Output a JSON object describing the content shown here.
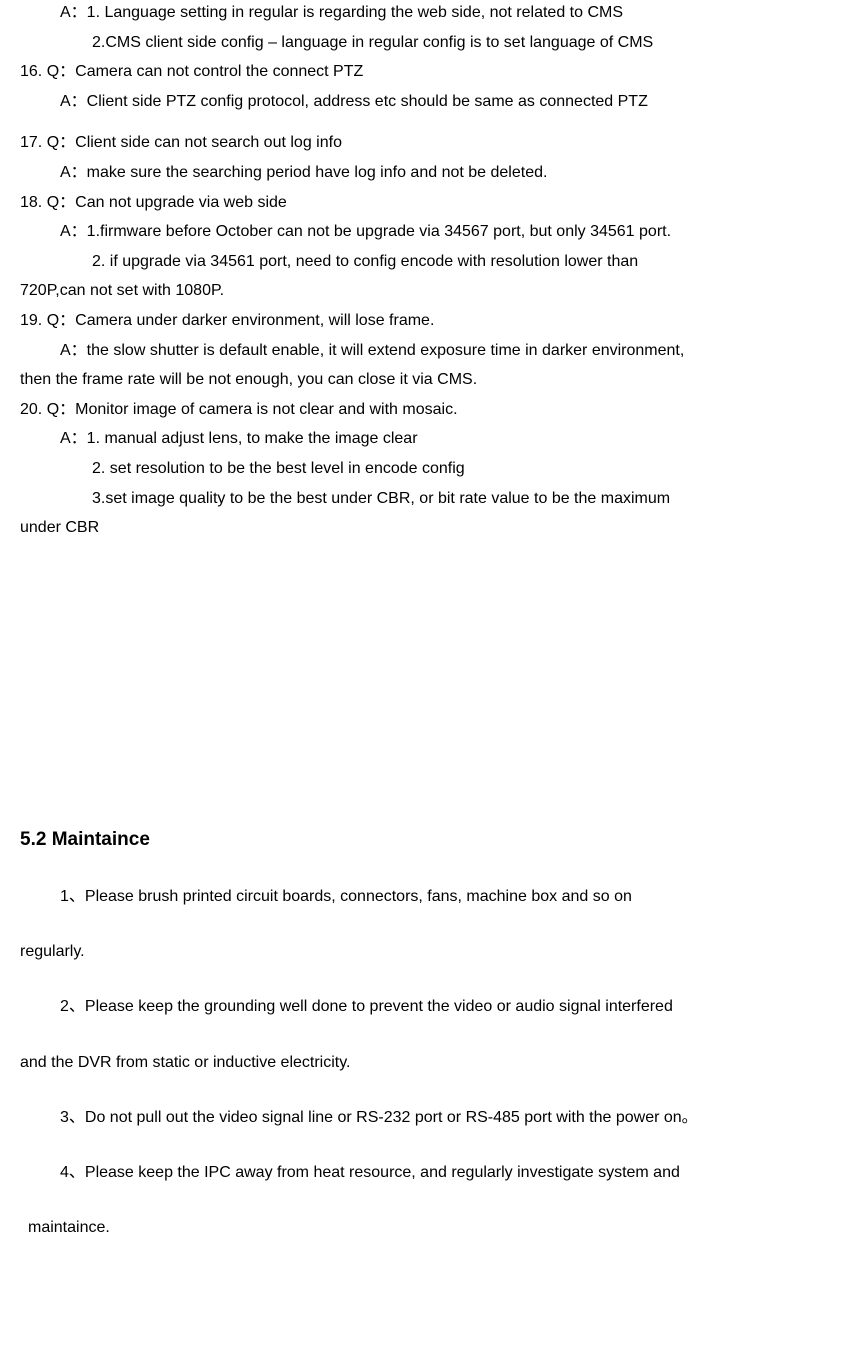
{
  "qa15_a1": "A：1. Language setting in regular is regarding the web side, not related to CMS",
  "qa15_a2": "2.CMS client side config – language in regular config is to set language of CMS",
  "qa16_q": "16. Q：Camera can not control the connect PTZ",
  "qa16_a": "A：Client side PTZ config protocol, address etc should be same as connected PTZ",
  "qa17_q": "17. Q：Client side can not search out log info",
  "qa17_a": "A：make sure the searching period have log info and not be deleted.",
  "qa18_q": "18. Q：Can not upgrade via web side",
  "qa18_a1": "A：1.firmware before October can not be upgrade via 34567 port, but only 34561 port.",
  "qa18_a2": "2. if upgrade via 34561 port, need to config encode with resolution lower than",
  "qa18_a3": " 720P,can not set with 1080P.",
  "qa19_q": "19. Q：Camera under darker environment, will lose frame.",
  "qa19_a1": "A：the slow shutter is default enable, it will extend exposure time in darker environment,",
  "qa19_a2": "  then the frame rate will be not enough, you can close it via CMS.",
  "qa20_q": "20. Q：Monitor image of camera is not clear and with mosaic.",
  "qa20_a1": "A：1. manual adjust lens, to make the image clear",
  "qa20_a2": "2. set resolution to be the best level in encode config",
  "qa20_a3": "3.set image quality to be the best under CBR, or bit rate value to be the maximum",
  "qa20_a4": "under CBR",
  "section_title": "5.2 Maintaince",
  "maint1": "1、Please brush printed circuit boards, connectors, fans, machine box and so on",
  "maint1_cont": "regularly.",
  "maint2": "2、Please keep the grounding well done to prevent the video or audio signal interfered",
  "maint2_cont": "and the DVR from static or inductive electricity.",
  "maint3": "3、Do not pull out the video signal line or RS-232 port or RS-485 port with the power on。",
  "maint4": "4、Please keep the IPC away from heat resource, and regularly investigate system and",
  "maint4_cont": " maintaince."
}
